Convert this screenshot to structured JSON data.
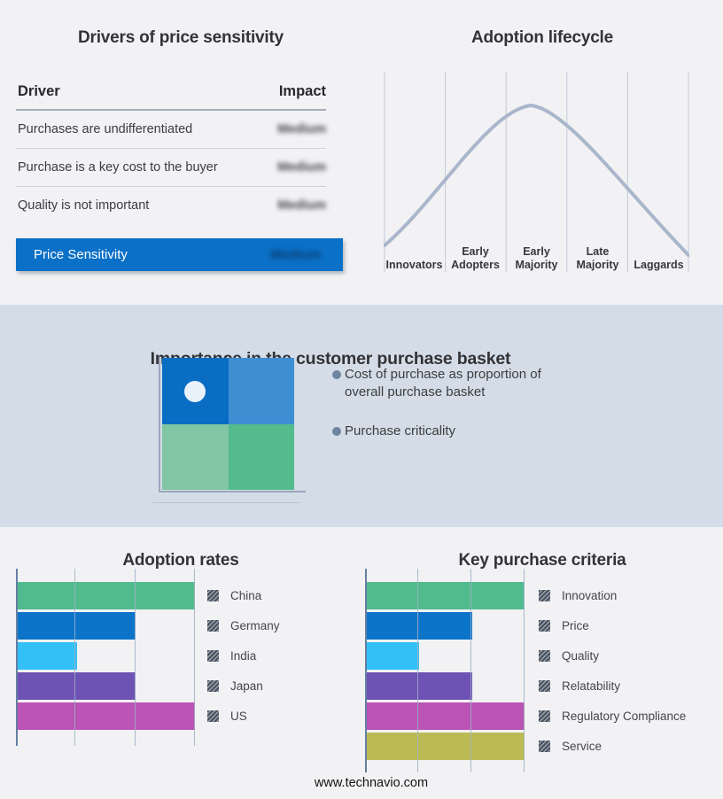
{
  "page": {
    "background": "#f2f2f4",
    "band_background": "#d4dde7",
    "footer_url": "www.technavio.com"
  },
  "drivers_panel": {
    "title": "Drivers of price sensitivity",
    "col_driver": "Driver",
    "col_impact": "Impact",
    "rows": [
      {
        "driver": "Purchases are undifferentiated",
        "impact": "Medium",
        "impact_obscured": true
      },
      {
        "driver": "Purchase is a key cost to the buyer",
        "impact": "Medium",
        "impact_obscured": true
      },
      {
        "driver": "Quality is not important",
        "impact": "Medium",
        "impact_obscured": true
      }
    ],
    "highlight_row": {
      "label": "Price Sensitivity",
      "impact": "Medium",
      "impact_obscured": true,
      "background": "#0b70c7"
    }
  },
  "lifecycle_panel": {
    "curve_color": "#a9b6cb",
    "gridline_color": "#c3cbd9"
  },
  "basket_panel": {
    "title": "Importance in the customer purchase basket",
    "bullets": [
      "Cost of purchase as proportion of overall purchase basket",
      "Purchase criticality"
    ],
    "bullet_color": "#6e84a1",
    "quadrant": {
      "cells": {
        "top_left": "#0a6dc4",
        "top_right": "#3e8ed3",
        "bottom_left": "#80c6a3",
        "bottom_right": "#54bb8d"
      },
      "marker_cell": "top_left",
      "marker_color": "#e9f2fb"
    }
  },
  "chart_data": [
    {
      "type": "line",
      "title": "Adoption lifecycle",
      "x": [
        "Innovators",
        "Early Adopters",
        "Early Majority",
        "Late Majority",
        "Laggards"
      ],
      "y_relative": [
        0.05,
        0.55,
        1.0,
        0.62,
        0.08
      ],
      "description": "Bell-shaped adoption curve rising from Innovators, peaking at Early Majority, falling through Laggards",
      "grid": "vertical stage-boundary lines",
      "legend": "none",
      "axis_labels": "none"
    },
    {
      "type": "bar",
      "orientation": "horizontal",
      "title": "Adoption rates",
      "categories": [
        "China",
        "Germany",
        "India",
        "Japan",
        "US"
      ],
      "values": [
        3,
        2,
        1,
        2,
        3
      ],
      "xlim": [
        0,
        3
      ],
      "colors": [
        "#52bb8e",
        "#0b74c9",
        "#33c0f7",
        "#6e52b4",
        "#bb54b4"
      ],
      "grid": true,
      "legend_position": "right",
      "axis_labels": "none"
    },
    {
      "type": "bar",
      "orientation": "horizontal",
      "title": "Key purchase criteria",
      "categories": [
        "Innovation",
        "Price",
        "Quality",
        "Relatability",
        "Regulatory Compliance",
        "Service"
      ],
      "values": [
        3,
        2,
        1,
        2,
        3,
        3
      ],
      "xlim": [
        0,
        3
      ],
      "colors": [
        "#52bb8e",
        "#0b74c9",
        "#33c0f7",
        "#6e52b4",
        "#bb54b4",
        "#bcba52"
      ],
      "grid": true,
      "legend_position": "right",
      "axis_labels": "none"
    }
  ]
}
